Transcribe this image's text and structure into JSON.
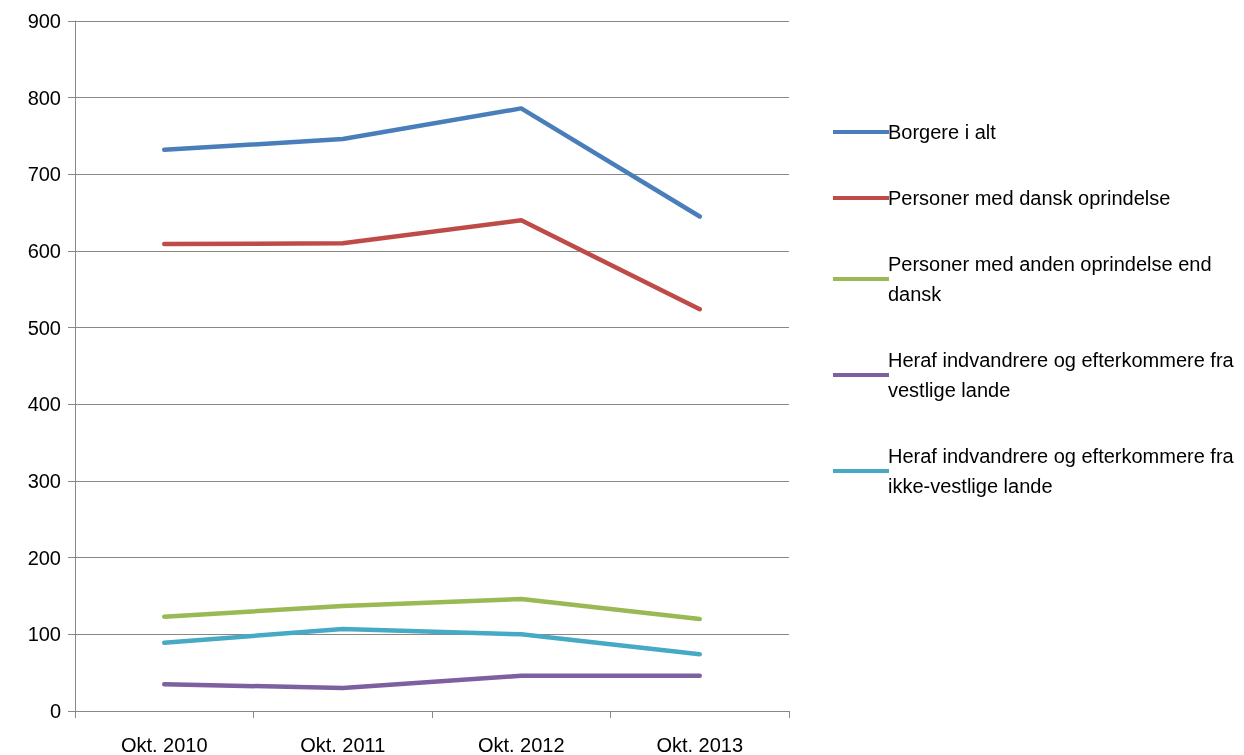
{
  "chart_data": {
    "type": "line",
    "categories": [
      "Okt. 2010",
      "Okt. 2011",
      "Okt. 2012",
      "Okt. 2013"
    ],
    "series": [
      {
        "name": "Borgere i alt",
        "color": "#4a7ebb",
        "values": [
          732,
          746,
          786,
          645
        ]
      },
      {
        "name": "Personer med dansk oprindelse",
        "color": "#be4b48",
        "values": [
          609,
          610,
          640,
          524
        ]
      },
      {
        "name": "Personer med anden oprindelse end dansk",
        "color": "#98b954",
        "values": [
          123,
          137,
          146,
          120
        ]
      },
      {
        "name": "Heraf indvandrere og efterkommere fra vestlige lande",
        "color": "#7d60a0",
        "values": [
          35,
          30,
          46,
          46
        ]
      },
      {
        "name": "Heraf indvandrere og efterkommere fra ikke-vestlige lande",
        "color": "#46aac5",
        "values": [
          89,
          107,
          100,
          74
        ]
      }
    ],
    "ylim": [
      0,
      900
    ],
    "yticks": [
      0,
      100,
      200,
      300,
      400,
      500,
      600,
      700,
      800,
      900
    ],
    "grid": "y",
    "legend": "right",
    "marker": "none",
    "line_style": "solid"
  }
}
